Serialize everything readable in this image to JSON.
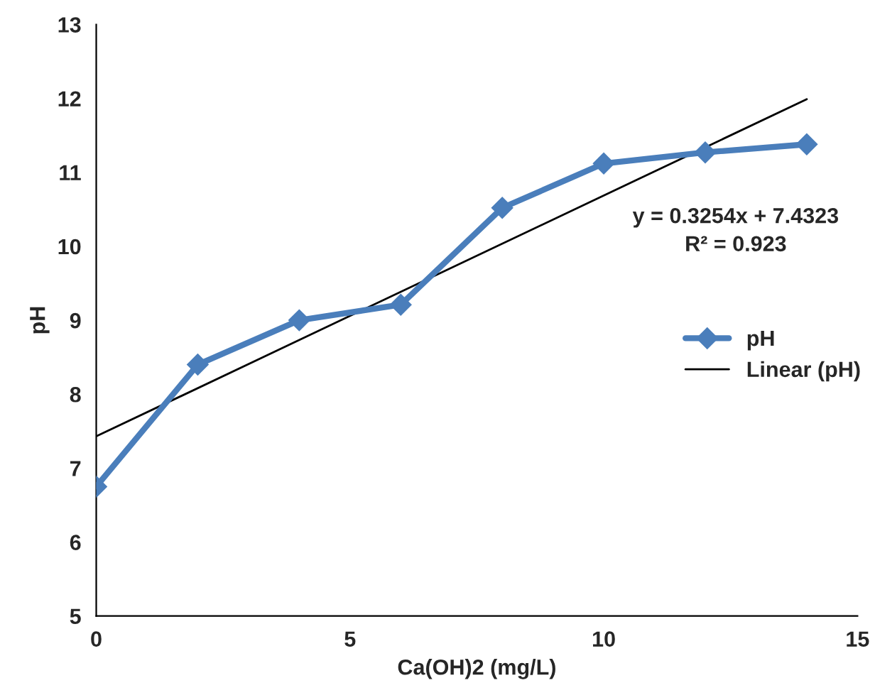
{
  "chart_data": {
    "type": "line",
    "xlabel": "Ca(OH)2 (mg/L)",
    "ylabel": "pH",
    "series": [
      {
        "name": "pH",
        "color": "#4a7ebb",
        "x": [
          0,
          2,
          4,
          6,
          8,
          10,
          12,
          14
        ],
        "values": [
          6.75,
          8.4,
          9.0,
          9.21,
          10.52,
          11.12,
          11.27,
          11.38
        ],
        "marker": "diamond",
        "line_style": "solid"
      },
      {
        "name": "Linear (pH)",
        "type": "line",
        "color": "#000000",
        "x": [
          0,
          14
        ],
        "values": [
          7.43,
          11.99
        ],
        "marker": "none",
        "line_style": "solid"
      }
    ],
    "annotations": [
      "y = 0.3254x + 7.4323\nR² = 0.923"
    ],
    "xlim": [
      0,
      15
    ],
    "xticks": [
      0,
      5,
      10,
      15
    ],
    "ylim": [
      5,
      13
    ],
    "yticks": [
      5,
      6,
      7,
      8,
      9,
      10,
      11,
      12,
      13
    ],
    "grid": false,
    "legend": "right"
  }
}
